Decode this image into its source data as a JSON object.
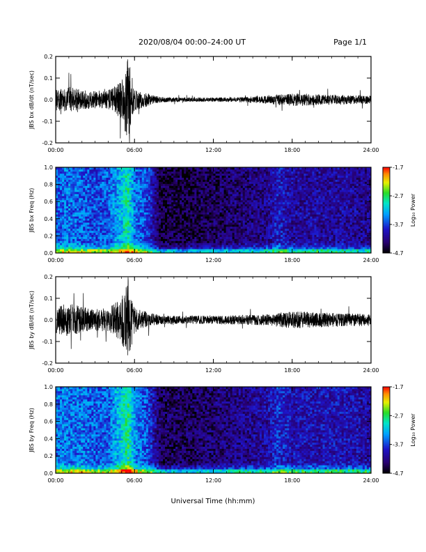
{
  "header": {
    "title": "2020/08/04  00:00–24:00 UT",
    "page": "Page 1/1"
  },
  "xlabel": "Universal Time (hh:mm)",
  "colorbar": {
    "label": "Log₁₀ Power",
    "ticks": [
      "-1.7",
      "-2.7",
      "-3.7",
      "-4.7"
    ]
  },
  "chart_data": [
    {
      "type": "line",
      "ylabel": "JBS bx dB/dt (nT/sec)",
      "xlim": [
        0,
        24
      ],
      "ylim": [
        -0.2,
        0.2
      ],
      "x_ticks": [
        "00:00",
        "06:00",
        "12:00",
        "18:00",
        "24:00"
      ],
      "y_ticks": [
        "0.2",
        "0.1",
        "0.0",
        "-0.1",
        "-0.2"
      ],
      "envelope": {
        "hours": [
          0,
          1,
          2,
          3,
          4,
          5,
          5.5,
          6,
          7,
          8,
          10,
          12,
          14,
          16,
          17,
          18,
          20,
          22,
          24
        ],
        "amplitude": [
          0.05,
          0.06,
          0.045,
          0.04,
          0.045,
          0.09,
          0.2,
          0.05,
          0.03,
          0.012,
          0.01,
          0.01,
          0.012,
          0.018,
          0.025,
          0.03,
          0.025,
          0.022,
          0.02
        ]
      }
    },
    {
      "type": "heatmap",
      "ylabel": "JBS bx Freq (Hz)",
      "xlim": [
        0,
        24
      ],
      "ylim": [
        0,
        1.0
      ],
      "zlim": [
        -4.7,
        -1.7
      ],
      "x_ticks": [
        "00:00",
        "06:00",
        "12:00",
        "18:00",
        "24:00"
      ],
      "y_ticks": [
        "1.0",
        "0.8",
        "0.6",
        "0.4",
        "0.2",
        "0.0"
      ],
      "level": {
        "hours": [
          0,
          1,
          2,
          3,
          4,
          5,
          5.5,
          6,
          7,
          8,
          10,
          12,
          14,
          16,
          17,
          18,
          20,
          22,
          24
        ],
        "log_power": [
          -3.6,
          -3.5,
          -3.6,
          -3.7,
          -3.6,
          -3.2,
          -2.9,
          -3.5,
          -3.7,
          -4.5,
          -4.5,
          -4.4,
          -4.3,
          -4.2,
          -3.9,
          -4.1,
          -4.1,
          -4.1,
          -4.2
        ]
      }
    },
    {
      "type": "line",
      "ylabel": "JBS by dB/dt (nT/sec)",
      "xlim": [
        0,
        24
      ],
      "ylim": [
        -0.2,
        0.2
      ],
      "x_ticks": [
        "00:00",
        "06:00",
        "12:00",
        "18:00",
        "24:00"
      ],
      "y_ticks": [
        "0.2",
        "0.1",
        "0.0",
        "-0.1",
        "-0.2"
      ],
      "envelope": {
        "hours": [
          0,
          1,
          2,
          3,
          4,
          5,
          5.5,
          6,
          7,
          8,
          10,
          12,
          14,
          16,
          17,
          18,
          20,
          22,
          24
        ],
        "amplitude": [
          0.06,
          0.08,
          0.06,
          0.05,
          0.055,
          0.1,
          0.2,
          0.06,
          0.035,
          0.02,
          0.018,
          0.02,
          0.022,
          0.025,
          0.035,
          0.04,
          0.035,
          0.03,
          0.028
        ]
      }
    },
    {
      "type": "heatmap",
      "ylabel": "JBS by Freq (Hz)",
      "xlim": [
        0,
        24
      ],
      "ylim": [
        0,
        1.0
      ],
      "zlim": [
        -4.7,
        -1.7
      ],
      "x_ticks": [
        "00:00",
        "06:00",
        "12:00",
        "18:00",
        "24:00"
      ],
      "y_ticks": [
        "1.0",
        "0.8",
        "0.6",
        "0.4",
        "0.2",
        "0.0"
      ],
      "level": {
        "hours": [
          0,
          1,
          2,
          3,
          4,
          5,
          5.5,
          6,
          7,
          8,
          10,
          12,
          14,
          16,
          17,
          18,
          20,
          22,
          24
        ],
        "log_power": [
          -3.5,
          -3.5,
          -3.5,
          -3.6,
          -3.6,
          -3.1,
          -2.8,
          -3.4,
          -3.7,
          -4.4,
          -4.4,
          -4.3,
          -4.2,
          -4.1,
          -3.8,
          -4.0,
          -4.0,
          -4.0,
          -4.1
        ]
      }
    }
  ]
}
